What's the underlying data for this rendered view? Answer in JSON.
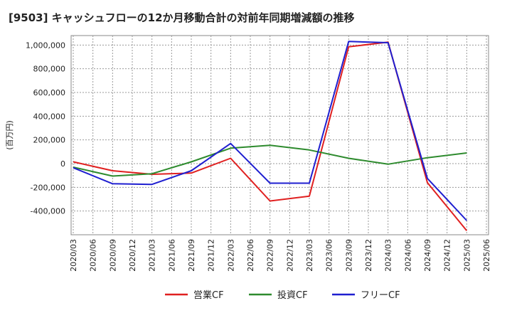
{
  "chart_data": {
    "type": "line",
    "title": "[9503]  キャッシュフローの12か月移動合計の対前年同期増減額の推移",
    "ylabel": "(百万円)",
    "xlabel": "",
    "ylim": [
      -600000,
      1080000
    ],
    "yticks": [
      -400000,
      -200000,
      0,
      200000,
      400000,
      600000,
      800000,
      1000000
    ],
    "ytick_labels": [
      "-400,000",
      "-200,000",
      "0",
      "200,000",
      "400,000",
      "600,000",
      "800,000",
      "1,000,000"
    ],
    "categories": [
      "2020/03",
      "2020/06",
      "2020/09",
      "2020/12",
      "2021/03",
      "2021/06",
      "2021/09",
      "2021/12",
      "2022/03",
      "2022/06",
      "2022/09",
      "2022/12",
      "2023/03",
      "2023/06",
      "2023/09",
      "2023/12",
      "2024/03",
      "2024/06",
      "2024/09",
      "2024/12",
      "2025/03",
      "2025/06"
    ],
    "grid": true,
    "legend_position": "bottom",
    "series": [
      {
        "name": "営業CF",
        "color": "#e02020",
        "values": [
          15000,
          null,
          -60000,
          null,
          -90000,
          null,
          -80000,
          null,
          45000,
          null,
          -315000,
          null,
          -275000,
          null,
          985000,
          null,
          1025000,
          null,
          -160000,
          null,
          -565000,
          null
        ]
      },
      {
        "name": "投資CF",
        "color": "#2e8b2e",
        "values": [
          -30000,
          null,
          -105000,
          null,
          -85000,
          null,
          15000,
          null,
          130000,
          null,
          155000,
          null,
          115000,
          null,
          45000,
          null,
          -5000,
          null,
          50000,
          null,
          90000,
          null
        ]
      },
      {
        "name": "フリーCF",
        "color": "#1f1fd0",
        "values": [
          -35000,
          null,
          -170000,
          null,
          -175000,
          null,
          -60000,
          null,
          170000,
          null,
          -165000,
          null,
          -165000,
          null,
          1030000,
          null,
          1020000,
          null,
          -125000,
          null,
          -480000,
          null
        ]
      }
    ]
  }
}
